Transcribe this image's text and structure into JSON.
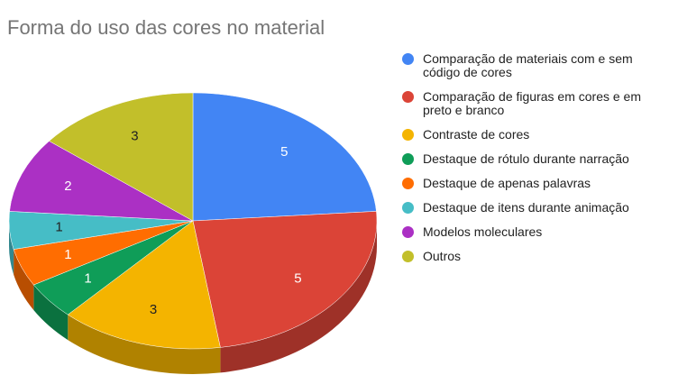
{
  "chart_data": {
    "type": "pie3d",
    "title": "Forma do uso das cores no material",
    "categories": [
      "Comparação de materiais com e sem código de cores",
      "Comparação de figuras em cores e em preto e branco",
      "Contraste de cores",
      "Destaque de rótulo durante narração",
      "Destaque de apenas palavras",
      "Destaque de itens durante animação",
      "Modelos moleculares",
      "Outros"
    ],
    "values": [
      5,
      5,
      3,
      1,
      1,
      1,
      2,
      3
    ],
    "colors": [
      "#4285f4",
      "#db4437",
      "#f4b400",
      "#0f9d58",
      "#ff6d01",
      "#46bdc6",
      "#ab30c4",
      "#c2bf2a"
    ],
    "legend": "right"
  }
}
